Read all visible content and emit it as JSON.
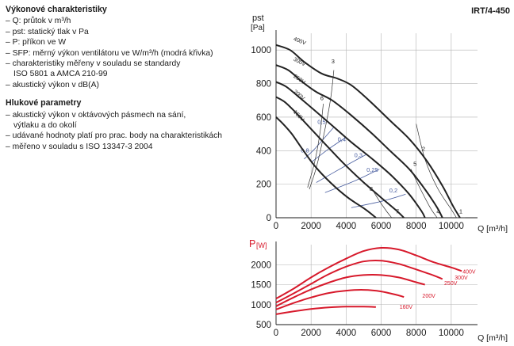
{
  "text": {
    "perf_heading": "Výkonové charakteristiky",
    "perf_lines": [
      "– Q: průtok v m³/h",
      "– pst: statický tlak v Pa",
      "– P: příkon ve W",
      "– SFP: měrný výkon ventilátoru ve W/m³/h (modrá křivka)",
      "– charakteristiky měřeny v souladu se standardy",
      "ISO 5801 a AMCA 210-99",
      "– akustický výkon v dB(A)"
    ],
    "noise_heading": "Hlukové parametry",
    "noise_lines": [
      "– akustický výkon v oktávových pásmech na sání,",
      "výtlaku a do okolí",
      "– udávané hodnoty platí pro prac. body na charakteristikách",
      "– měřeno v souladu s ISO 13347-3 2004"
    ]
  },
  "colors": {
    "pressure_curve": "#222222",
    "power_curve": "#d7192b",
    "sfp_curve": "#4a5fa0",
    "grid": "#b3b3b3",
    "power_label": "#d7192b"
  },
  "chart_data": [
    {
      "type": "line",
      "title": "IRT/4-450",
      "ylabel_main": "pst",
      "ylabel_unit": "[Pa]",
      "xlabel": "Q [m³/h]",
      "xlim": [
        0,
        11500
      ],
      "ylim": [
        0,
        1100
      ],
      "x_ticks": [
        0,
        2000,
        4000,
        6000,
        8000,
        10000
      ],
      "y_ticks": [
        0,
        200,
        400,
        600,
        800,
        1000
      ],
      "grid": true,
      "series": [
        {
          "name": "400V",
          "points": [
            [
              0,
              1030
            ],
            [
              800,
              1000
            ],
            [
              1600,
              930
            ],
            [
              2600,
              860
            ],
            [
              3500,
              830
            ],
            [
              4300,
              790
            ],
            [
              5300,
              700
            ],
            [
              6500,
              580
            ],
            [
              7600,
              470
            ],
            [
              8600,
              340
            ],
            [
              9500,
              190
            ],
            [
              10100,
              70
            ],
            [
              10500,
              0
            ]
          ]
        },
        {
          "name": "300V",
          "points": [
            [
              0,
              910
            ],
            [
              700,
              880
            ],
            [
              1500,
              810
            ],
            [
              2300,
              750
            ],
            [
              3200,
              700
            ],
            [
              4300,
              610
            ],
            [
              5500,
              500
            ],
            [
              6600,
              390
            ],
            [
              7600,
              290
            ],
            [
              8500,
              170
            ],
            [
              9200,
              60
            ],
            [
              9500,
              0
            ]
          ]
        },
        {
          "name": "250V",
          "points": [
            [
              0,
              810
            ],
            [
              600,
              780
            ],
            [
              1300,
              720
            ],
            [
              2200,
              640
            ],
            [
              3200,
              550
            ],
            [
              4300,
              450
            ],
            [
              5500,
              350
            ],
            [
              6600,
              250
            ],
            [
              7600,
              140
            ],
            [
              8300,
              40
            ],
            [
              8500,
              0
            ]
          ]
        },
        {
          "name": "200V",
          "points": [
            [
              0,
              720
            ],
            [
              500,
              690
            ],
            [
              1100,
              630
            ],
            [
              1900,
              540
            ],
            [
              2800,
              440
            ],
            [
              3800,
              330
            ],
            [
              4900,
              220
            ],
            [
              6000,
              120
            ],
            [
              6900,
              40
            ],
            [
              7300,
              0
            ]
          ]
        },
        {
          "name": "160V",
          "points": [
            [
              0,
              600
            ],
            [
              400,
              560
            ],
            [
              900,
              500
            ],
            [
              1500,
              410
            ],
            [
              2200,
              310
            ],
            [
              3100,
              210
            ],
            [
              4100,
              120
            ],
            [
              5100,
              50
            ],
            [
              5700,
              0
            ]
          ]
        }
      ],
      "operating_lines": [
        {
          "label": "1",
          "points": [
            [
              10300,
              0
            ],
            [
              10800,
              0
            ]
          ]
        },
        {
          "label": "2",
          "points": [
            [
              8000,
              560
            ],
            [
              8500,
              350
            ],
            [
              9200,
              180
            ],
            [
              10000,
              50
            ],
            [
              10300,
              0
            ]
          ]
        },
        {
          "label": "3",
          "points": [
            [
              3300,
              880
            ],
            [
              3100,
              700
            ],
            [
              2700,
              480
            ],
            [
              2300,
              300
            ],
            [
              1900,
              170
            ]
          ]
        },
        {
          "label": "4",
          "points": [
            [
              9000,
              0
            ],
            [
              9300,
              0
            ]
          ]
        },
        {
          "label": "5",
          "points": [
            [
              7700,
              290
            ],
            [
              8200,
              180
            ],
            [
              8800,
              60
            ],
            [
              9200,
              0
            ]
          ]
        },
        {
          "label": "6",
          "points": [
            [
              2700,
              680
            ],
            [
              2500,
              500
            ],
            [
              2200,
              330
            ],
            [
              1800,
              180
            ]
          ]
        },
        {
          "label": "7",
          "points": [
            [
              6800,
              0
            ],
            [
              7000,
              0
            ]
          ]
        },
        {
          "label": "8",
          "points": [
            [
              5600,
              150
            ],
            [
              5900,
              100
            ],
            [
              6300,
              40
            ],
            [
              6600,
              0
            ]
          ]
        }
      ],
      "sfp_lines": [
        {
          "label": "0.5",
          "points": [
            [
              3300,
              540
            ],
            [
              2200,
              410
            ],
            [
              1600,
              350
            ]
          ]
        },
        {
          "label": "0.4",
          "points": [
            [
              4000,
              480
            ],
            [
              3000,
              410
            ],
            [
              2000,
              330
            ]
          ]
        },
        {
          "label": "0.3",
          "points": [
            [
              5200,
              380
            ],
            [
              3800,
              300
            ],
            [
              2300,
              210
            ]
          ]
        },
        {
          "label": "0.25",
          "points": [
            [
              5900,
              290
            ],
            [
              4500,
              220
            ],
            [
              2800,
              150
            ]
          ]
        },
        {
          "label": "0.2",
          "points": [
            [
              7400,
              140
            ],
            [
              6100,
              100
            ],
            [
              4300,
              60
            ]
          ]
        }
      ],
      "point_labels": [
        {
          "text": "1",
          "x": 10550,
          "y": 25
        },
        {
          "text": "2",
          "x": 8420,
          "y": 400
        },
        {
          "text": "3",
          "x": 3250,
          "y": 920
        },
        {
          "text": "4",
          "x": 9250,
          "y": 25
        },
        {
          "text": "5",
          "x": 7930,
          "y": 310
        },
        {
          "text": "6",
          "x": 2620,
          "y": 700
        },
        {
          "text": "7",
          "x": 6930,
          "y": 25
        },
        {
          "text": "8",
          "x": 5430,
          "y": 160
        }
      ],
      "sfp_label_positions": [
        {
          "text": "0,5",
          "x": 2600,
          "y": 560
        },
        {
          "text": "0,4",
          "x": 3750,
          "y": 455
        },
        {
          "text": "0,3",
          "x": 4700,
          "y": 360
        },
        {
          "text": "0,25",
          "x": 5500,
          "y": 275
        },
        {
          "text": "0,2",
          "x": 6700,
          "y": 150
        },
        {
          "text": "0,8",
          "x": 1650,
          "y": 390
        }
      ]
    },
    {
      "type": "line",
      "ylabel_main": "P",
      "ylabel_unit": "[W]",
      "xlabel": "Q [m³/h]",
      "xlim": [
        0,
        11500
      ],
      "ylim": [
        500,
        2500
      ],
      "x_ticks": [
        0,
        2000,
        4000,
        6000,
        8000,
        10000
      ],
      "y_ticks": [
        500,
        1000,
        1500,
        2000
      ],
      "grid": true,
      "series": [
        {
          "name": "400V",
          "points": [
            [
              0,
              1150
            ],
            [
              1000,
              1400
            ],
            [
              2000,
              1680
            ],
            [
              3000,
              1930
            ],
            [
              4000,
              2150
            ],
            [
              5000,
              2340
            ],
            [
              6000,
              2420
            ],
            [
              7000,
              2380
            ],
            [
              8000,
              2230
            ],
            [
              9000,
              2060
            ],
            [
              10000,
              1930
            ],
            [
              10600,
              1840
            ]
          ]
        },
        {
          "name": "300V",
          "points": [
            [
              0,
              1050
            ],
            [
              1000,
              1280
            ],
            [
              2000,
              1520
            ],
            [
              3000,
              1760
            ],
            [
              4000,
              1950
            ],
            [
              5000,
              2080
            ],
            [
              6000,
              2100
            ],
            [
              7000,
              2020
            ],
            [
              8000,
              1880
            ],
            [
              9000,
              1730
            ],
            [
              9500,
              1640
            ]
          ]
        },
        {
          "name": "250V",
          "points": [
            [
              0,
              960
            ],
            [
              1000,
              1180
            ],
            [
              2000,
              1380
            ],
            [
              3000,
              1550
            ],
            [
              4000,
              1680
            ],
            [
              5000,
              1740
            ],
            [
              6000,
              1740
            ],
            [
              7000,
              1680
            ],
            [
              8000,
              1560
            ],
            [
              8500,
              1500
            ]
          ]
        },
        {
          "name": "200V",
          "points": [
            [
              0,
              880
            ],
            [
              1000,
              1040
            ],
            [
              2000,
              1180
            ],
            [
              3000,
              1290
            ],
            [
              4000,
              1350
            ],
            [
              5000,
              1370
            ],
            [
              6000,
              1330
            ],
            [
              7000,
              1230
            ],
            [
              7300,
              1190
            ]
          ]
        },
        {
          "name": "160V",
          "points": [
            [
              0,
              760
            ],
            [
              1000,
              830
            ],
            [
              2000,
              890
            ],
            [
              3000,
              930
            ],
            [
              4000,
              950
            ],
            [
              5000,
              950
            ],
            [
              5700,
              940
            ]
          ]
        }
      ],
      "series_label_positions": [
        {
          "text": "400V",
          "x": 10650,
          "y": 1780
        },
        {
          "text": "300V",
          "x": 10200,
          "y": 1630
        },
        {
          "text": "250V",
          "x": 9600,
          "y": 1490
        },
        {
          "text": "200V",
          "x": 8350,
          "y": 1170
        },
        {
          "text": "160V",
          "x": 7050,
          "y": 900
        }
      ]
    }
  ]
}
